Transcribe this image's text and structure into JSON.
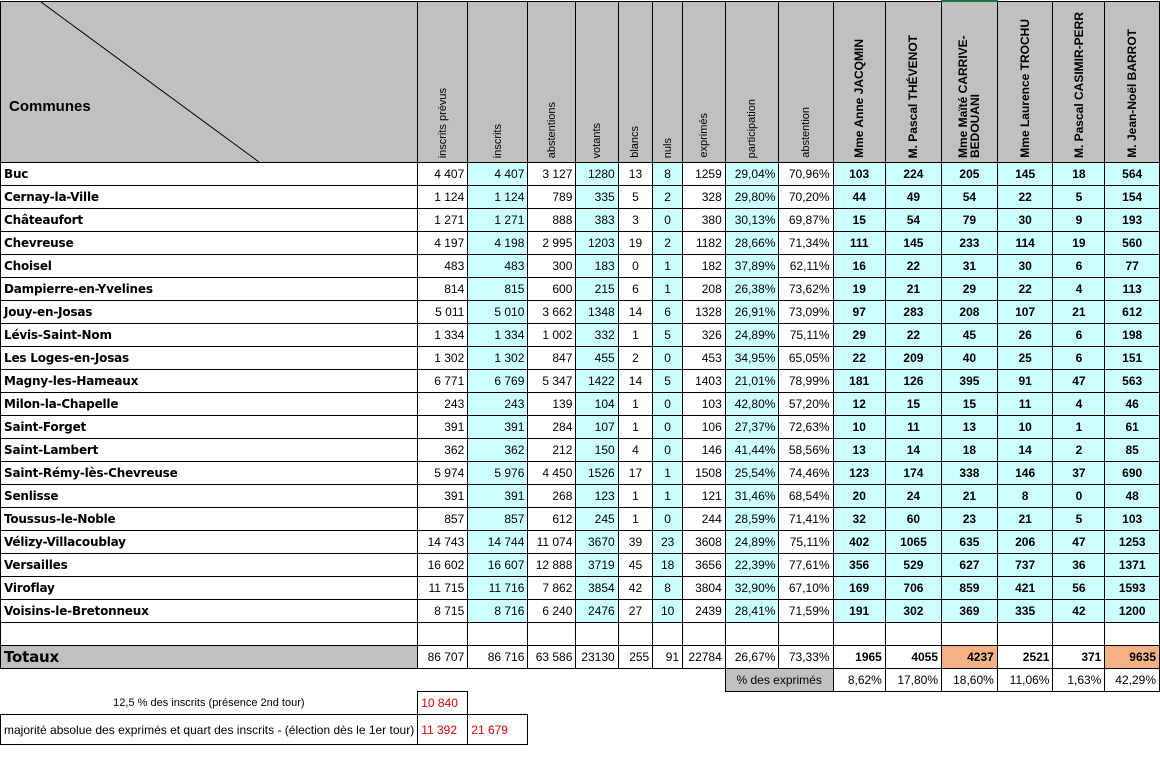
{
  "header": {
    "communes": "Communes",
    "columns": [
      "inscrits prévus",
      "inscrits",
      "abstentions",
      "votants",
      "blancs",
      "nuls",
      "exprimés",
      "participation",
      "abstention"
    ],
    "candidates": [
      "Mme Anne JACQMIN",
      "M. Pascal THÉVENOT",
      "Mme Maïté CARRIVE-BEDOUANI",
      "Mme Laurence TROCHU",
      "M. Pascal CASIMIR-PERR",
      "M. Jean-Noël BARROT"
    ]
  },
  "rows": [
    {
      "commune": "Buc",
      "c": [
        "4 407",
        "4 407",
        "3 127",
        "1280",
        "13",
        "8",
        "1259",
        "29,04%",
        "70,96%"
      ],
      "v": [
        "103",
        "224",
        "205",
        "145",
        "18",
        "564"
      ]
    },
    {
      "commune": "Cernay-la-Ville",
      "c": [
        "1 124",
        "1 124",
        "789",
        "335",
        "5",
        "2",
        "328",
        "29,80%",
        "70,20%"
      ],
      "v": [
        "44",
        "49",
        "54",
        "22",
        "5",
        "154"
      ]
    },
    {
      "commune": "Châteaufort",
      "c": [
        "1 271",
        "1 271",
        "888",
        "383",
        "3",
        "0",
        "380",
        "30,13%",
        "69,87%"
      ],
      "v": [
        "15",
        "54",
        "79",
        "30",
        "9",
        "193"
      ]
    },
    {
      "commune": "Chevreuse",
      "c": [
        "4 197",
        "4 198",
        "2 995",
        "1203",
        "19",
        "2",
        "1182",
        "28,66%",
        "71,34%"
      ],
      "v": [
        "111",
        "145",
        "233",
        "114",
        "19",
        "560"
      ]
    },
    {
      "commune": "Choisel",
      "c": [
        "483",
        "483",
        "300",
        "183",
        "0",
        "1",
        "182",
        "37,89%",
        "62,11%"
      ],
      "v": [
        "16",
        "22",
        "31",
        "30",
        "6",
        "77"
      ]
    },
    {
      "commune": "Dampierre-en-Yvelines",
      "c": [
        "814",
        "815",
        "600",
        "215",
        "6",
        "1",
        "208",
        "26,38%",
        "73,62%"
      ],
      "v": [
        "19",
        "21",
        "29",
        "22",
        "4",
        "113"
      ]
    },
    {
      "commune": "Jouy-en-Josas",
      "c": [
        "5 011",
        "5 010",
        "3 662",
        "1348",
        "14",
        "6",
        "1328",
        "26,91%",
        "73,09%"
      ],
      "v": [
        "97",
        "283",
        "208",
        "107",
        "21",
        "612"
      ]
    },
    {
      "commune": "Lévis-Saint-Nom",
      "c": [
        "1 334",
        "1 334",
        "1 002",
        "332",
        "1",
        "5",
        "326",
        "24,89%",
        "75,11%"
      ],
      "v": [
        "29",
        "22",
        "45",
        "26",
        "6",
        "198"
      ]
    },
    {
      "commune": "Les Loges-en-Josas",
      "c": [
        "1 302",
        "1 302",
        "847",
        "455",
        "2",
        "0",
        "453",
        "34,95%",
        "65,05%"
      ],
      "v": [
        "22",
        "209",
        "40",
        "25",
        "6",
        "151"
      ]
    },
    {
      "commune": "Magny-les-Hameaux",
      "c": [
        "6 771",
        "6 769",
        "5 347",
        "1422",
        "14",
        "5",
        "1403",
        "21,01%",
        "78,99%"
      ],
      "v": [
        "181",
        "126",
        "395",
        "91",
        "47",
        "563"
      ]
    },
    {
      "commune": "Milon-la-Chapelle",
      "c": [
        "243",
        "243",
        "139",
        "104",
        "1",
        "0",
        "103",
        "42,80%",
        "57,20%"
      ],
      "v": [
        "12",
        "15",
        "15",
        "11",
        "4",
        "46"
      ]
    },
    {
      "commune": "Saint-Forget",
      "c": [
        "391",
        "391",
        "284",
        "107",
        "1",
        "0",
        "106",
        "27,37%",
        "72,63%"
      ],
      "v": [
        "10",
        "11",
        "13",
        "10",
        "1",
        "61"
      ]
    },
    {
      "commune": "Saint-Lambert",
      "c": [
        "362",
        "362",
        "212",
        "150",
        "4",
        "0",
        "146",
        "41,44%",
        "58,56%"
      ],
      "v": [
        "13",
        "14",
        "18",
        "14",
        "2",
        "85"
      ]
    },
    {
      "commune": "Saint-Rémy-lès-Chevreuse",
      "c": [
        "5 974",
        "5 976",
        "4 450",
        "1526",
        "17",
        "1",
        "1508",
        "25,54%",
        "74,46%"
      ],
      "v": [
        "123",
        "174",
        "338",
        "146",
        "37",
        "690"
      ]
    },
    {
      "commune": "Senlisse",
      "c": [
        "391",
        "391",
        "268",
        "123",
        "1",
        "1",
        "121",
        "31,46%",
        "68,54%"
      ],
      "v": [
        "20",
        "24",
        "21",
        "8",
        "0",
        "48"
      ]
    },
    {
      "commune": "Toussus-le-Noble",
      "c": [
        "857",
        "857",
        "612",
        "245",
        "1",
        "0",
        "244",
        "28,59%",
        "71,41%"
      ],
      "v": [
        "32",
        "60",
        "23",
        "21",
        "5",
        "103"
      ]
    },
    {
      "commune": "Vélizy-Villacoublay",
      "c": [
        "14 743",
        "14 744",
        "11 074",
        "3670",
        "39",
        "23",
        "3608",
        "24,89%",
        "75,11%"
      ],
      "v": [
        "402",
        "1065",
        "635",
        "206",
        "47",
        "1253"
      ]
    },
    {
      "commune": "Versailles",
      "c": [
        "16 602",
        "16 607",
        "12 888",
        "3719",
        "45",
        "18",
        "3656",
        "22,39%",
        "77,61%"
      ],
      "v": [
        "356",
        "529",
        "627",
        "737",
        "36",
        "1371"
      ]
    },
    {
      "commune": "Viroflay",
      "c": [
        "11 715",
        "11 716",
        "7 862",
        "3854",
        "42",
        "8",
        "3804",
        "32,90%",
        "67,10%"
      ],
      "v": [
        "169",
        "706",
        "859",
        "421",
        "56",
        "1593"
      ]
    },
    {
      "commune": "Voisins-le-Bretonneux",
      "c": [
        "8 715",
        "8 716",
        "6 240",
        "2476",
        "27",
        "10",
        "2439",
        "28,41%",
        "71,59%"
      ],
      "v": [
        "191",
        "302",
        "369",
        "335",
        "42",
        "1200"
      ]
    }
  ],
  "totals": {
    "label": "Totaux",
    "c": [
      "86 707",
      "86 716",
      "63 586",
      "23130",
      "255",
      "91",
      "22784",
      "26,67%",
      "73,33%"
    ],
    "v": [
      "1965",
      "4055",
      "4237",
      "2521",
      "371",
      "9635"
    ]
  },
  "pct_exprimes": {
    "label": "% des exprimés",
    "v": [
      "8,62%",
      "17,80%",
      "18,60%",
      "11,06%",
      "1,63%",
      "42,29%"
    ]
  },
  "footer": {
    "line1_label": "12,5 % des inscrits (présence 2nd tour)",
    "line1_value": "10 840",
    "line2_label": "majorité absolue des exprimés et quart des inscrits - (élection dès le 1er tour)",
    "line2_value1": "11 392",
    "line2_value2": "21 679"
  },
  "colors": {
    "gray": "#c0c0c0",
    "cyan": "#ccffff",
    "orange": "#f4b183",
    "red": "#e00000"
  }
}
